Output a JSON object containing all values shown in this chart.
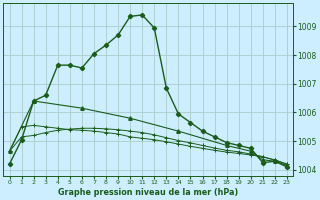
{
  "title": "Graphe pression niveau de la mer (hPa)",
  "background_color": "#cceeff",
  "grid_color": "#aacccc",
  "line_color": "#1a5c1a",
  "xlim": [
    -0.5,
    23.5
  ],
  "ylim": [
    1003.8,
    1009.8
  ],
  "yticks": [
    1004,
    1005,
    1006,
    1007,
    1008,
    1009
  ],
  "xticks": [
    0,
    1,
    2,
    3,
    4,
    5,
    6,
    7,
    8,
    9,
    10,
    11,
    12,
    13,
    14,
    15,
    16,
    17,
    18,
    19,
    20,
    21,
    22,
    23
  ],
  "series1_x": [
    0,
    1,
    2,
    3,
    4,
    5,
    6,
    7,
    8,
    9,
    10,
    11,
    12,
    13,
    14,
    15,
    16,
    17,
    18,
    19,
    20,
    21,
    22,
    23
  ],
  "series1_y": [
    1004.2,
    1005.05,
    1006.4,
    1006.6,
    1007.65,
    1007.65,
    1007.55,
    1008.05,
    1008.35,
    1008.7,
    1009.35,
    1009.4,
    1008.95,
    1006.85,
    1005.95,
    1005.65,
    1005.35,
    1005.15,
    1004.95,
    1004.85,
    1004.75,
    1004.25,
    1004.3,
    1004.1
  ],
  "series2_x": [
    0,
    1,
    2,
    3,
    4,
    5,
    6,
    7,
    8,
    9,
    10,
    11,
    12,
    13,
    14,
    15,
    16,
    17,
    18,
    19,
    20,
    21,
    22,
    23
  ],
  "series2_y": [
    1004.65,
    1005.5,
    1005.55,
    1005.5,
    1005.45,
    1005.4,
    1005.38,
    1005.35,
    1005.3,
    1005.25,
    1005.15,
    1005.1,
    1005.05,
    1004.98,
    1004.9,
    1004.82,
    1004.75,
    1004.68,
    1004.62,
    1004.57,
    1004.52,
    1004.45,
    1004.35,
    1004.2
  ],
  "series3_x": [
    0,
    1,
    2,
    3,
    4,
    5,
    6,
    7,
    8,
    9,
    10,
    11,
    12,
    13,
    14,
    15,
    16,
    17,
    18,
    19,
    20,
    21,
    22,
    23
  ],
  "series3_y": [
    1004.65,
    1005.15,
    1005.2,
    1005.3,
    1005.38,
    1005.42,
    1005.45,
    1005.45,
    1005.43,
    1005.4,
    1005.35,
    1005.3,
    1005.22,
    1005.12,
    1005.02,
    1004.94,
    1004.85,
    1004.76,
    1004.68,
    1004.63,
    1004.55,
    1004.46,
    1004.33,
    1004.2
  ],
  "series4_x": [
    0,
    2,
    6,
    10,
    14,
    18,
    20,
    21,
    22,
    23
  ],
  "series4_y": [
    1004.65,
    1006.4,
    1006.15,
    1005.8,
    1005.35,
    1004.85,
    1004.65,
    1004.35,
    1004.3,
    1004.15
  ]
}
